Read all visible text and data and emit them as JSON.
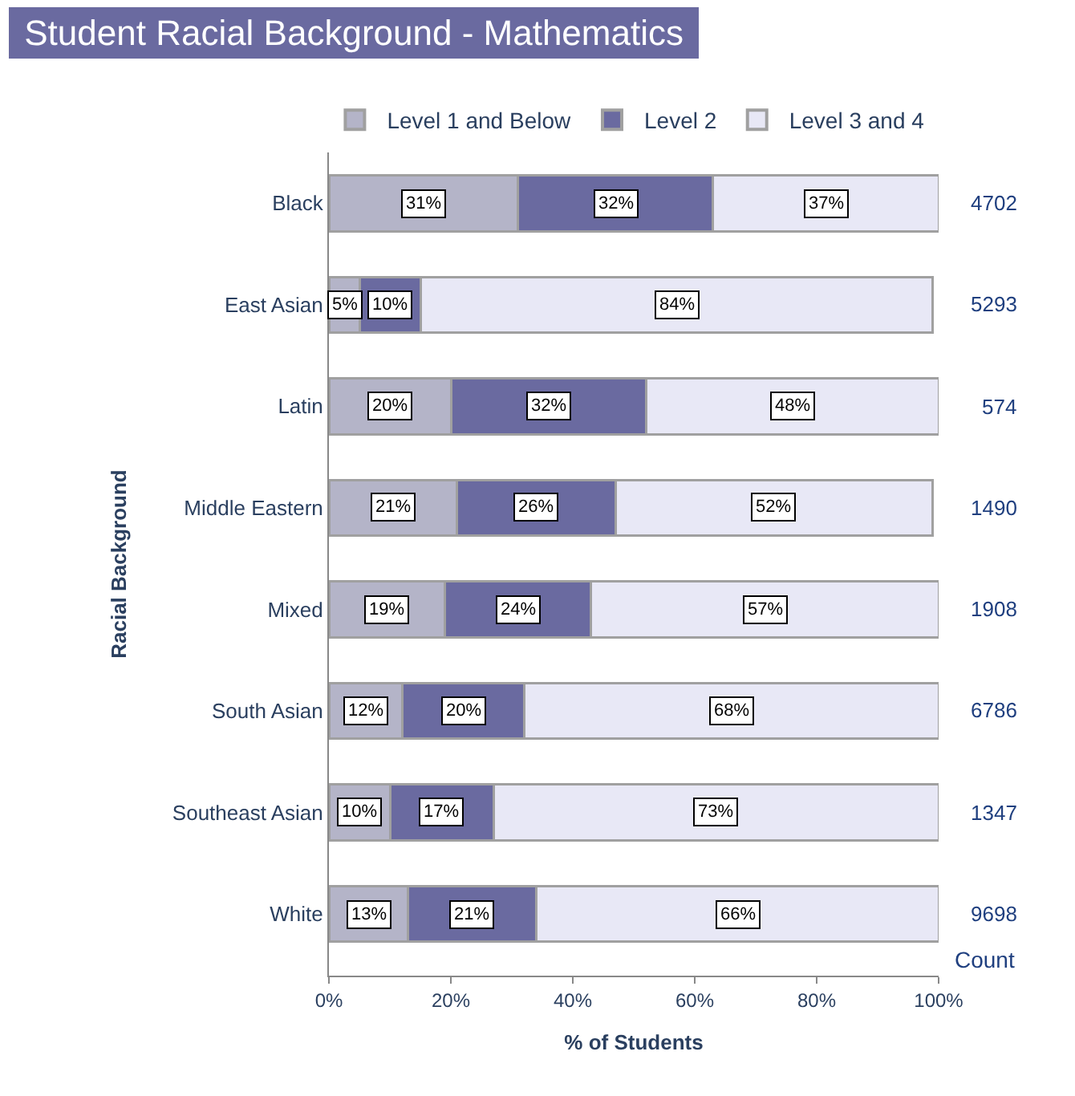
{
  "chart_data": {
    "type": "bar",
    "orientation": "horizontal",
    "stacked": true,
    "title": "Student Racial Background - Mathematics",
    "xlabel": "% of Students",
    "ylabel": "Racial Background",
    "categories": [
      "Black",
      "East Asian",
      "Latin",
      "Middle Eastern",
      "Mixed",
      "South Asian",
      "Southeast Asian",
      "White"
    ],
    "series": [
      {
        "name": "Level 1 and Below",
        "color": "#b4b4c8",
        "values": [
          31,
          5,
          20,
          21,
          19,
          12,
          10,
          13
        ],
        "value_labels": [
          "31%",
          "5%",
          "20%",
          "21%",
          "19%",
          "12%",
          "10%",
          "13%"
        ]
      },
      {
        "name": "Level 2",
        "color": "#6a6aa0",
        "values": [
          32,
          10,
          32,
          26,
          24,
          20,
          17,
          21
        ],
        "value_labels": [
          "32%",
          "10%",
          "32%",
          "26%",
          "24%",
          "20%",
          "17%",
          "21%"
        ]
      },
      {
        "name": "Level 3 and 4",
        "color": "#e8e8f6",
        "values": [
          37,
          84,
          48,
          52,
          57,
          68,
          73,
          66
        ],
        "value_labels": [
          "37%",
          "84%",
          "48%",
          "52%",
          "57%",
          "68%",
          "73%",
          "66%"
        ]
      }
    ],
    "xlim": [
      0,
      100
    ],
    "xticks": [
      {
        "value": 0,
        "label": "0%"
      },
      {
        "value": 20,
        "label": "20%"
      },
      {
        "value": 40,
        "label": "40%"
      },
      {
        "value": 60,
        "label": "60%"
      },
      {
        "value": 80,
        "label": "80%"
      },
      {
        "value": 100,
        "label": "100%"
      }
    ],
    "annotations": [
      "Count",
      "4702",
      "5293",
      "574",
      "1490",
      "1908",
      "6786",
      "1347",
      "9698"
    ],
    "legend": "top"
  }
}
